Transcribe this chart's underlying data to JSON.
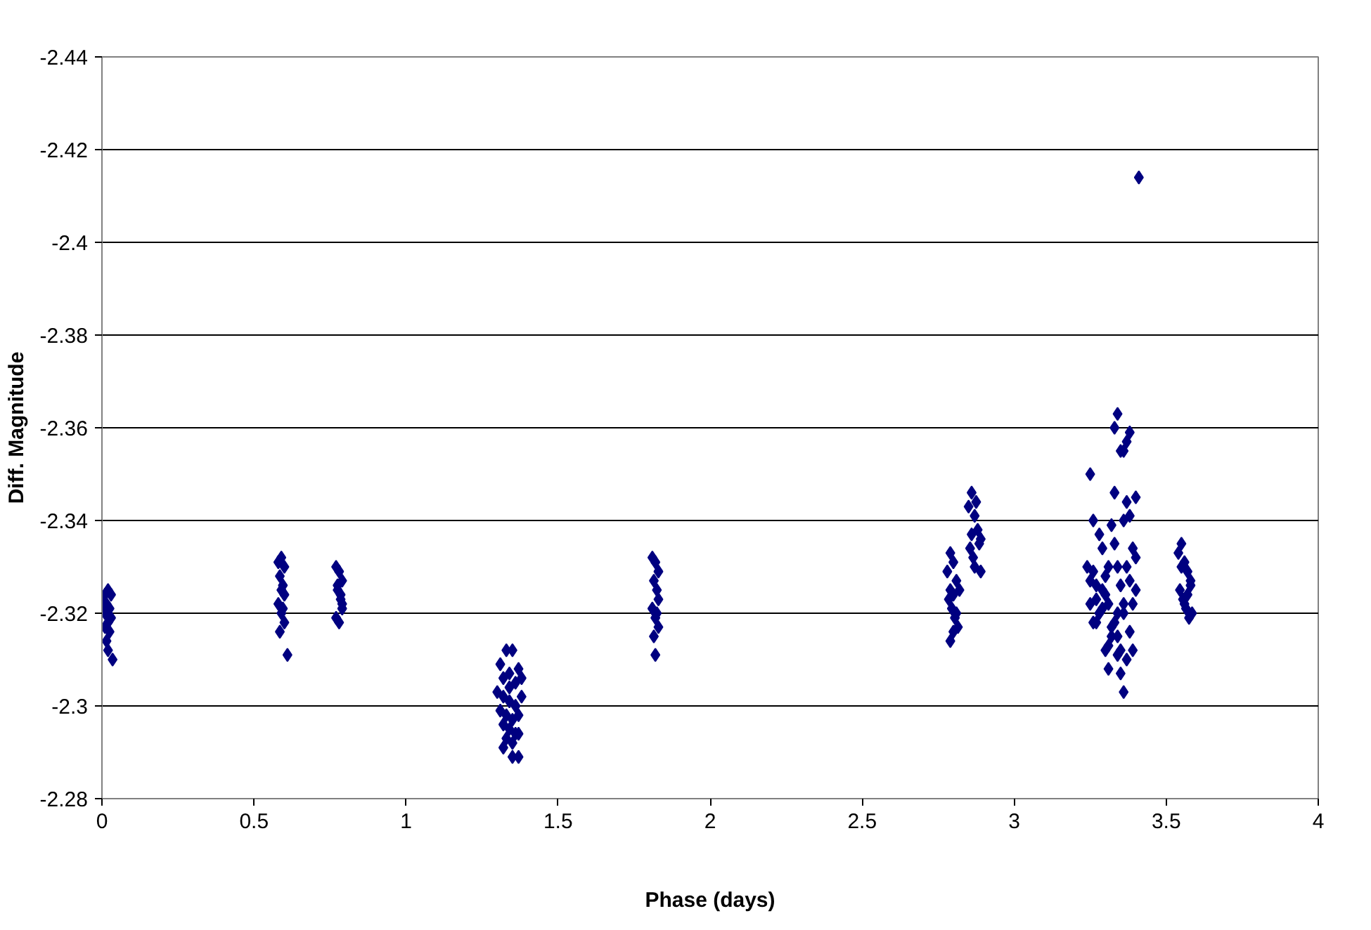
{
  "chart_data": {
    "type": "scatter",
    "xlabel": "Phase (days)",
    "ylabel": "Diff. Magnitude",
    "x": [
      0.01,
      0.02,
      0.03,
      0.015,
      0.025,
      0.01,
      0.03,
      0.02,
      0.01,
      0.025,
      0.015,
      0.035,
      0.005,
      0.02,
      0.58,
      0.59,
      0.6,
      0.585,
      0.595,
      0.6,
      0.58,
      0.59,
      0.6,
      0.585,
      0.595,
      0.59,
      0.61,
      0.77,
      0.78,
      0.79,
      0.775,
      0.785,
      0.79,
      0.77,
      0.78,
      0.79,
      0.775,
      0.785,
      1.31,
      1.33,
      1.35,
      1.37,
      1.32,
      1.34,
      1.36,
      1.38,
      1.3,
      1.32,
      1.34,
      1.36,
      1.38,
      1.31,
      1.33,
      1.35,
      1.37,
      1.32,
      1.34,
      1.36,
      1.33,
      1.35,
      1.37,
      1.34,
      1.36,
      1.32,
      1.35,
      1.37,
      1.81,
      1.82,
      1.83,
      1.815,
      1.825,
      1.83,
      1.81,
      1.82,
      1.83,
      1.815,
      1.825,
      1.82,
      2.78,
      2.79,
      2.8,
      2.81,
      2.82,
      2.785,
      2.795,
      2.805,
      2.815,
      2.8,
      2.79,
      2.81,
      2.8,
      2.79,
      2.85,
      2.86,
      2.87,
      2.88,
      2.89,
      2.855,
      2.865,
      2.875,
      2.885,
      2.87,
      2.89,
      2.86,
      3.24,
      3.25,
      3.26,
      3.27,
      3.28,
      3.29,
      3.3,
      3.31,
      3.32,
      3.33,
      3.34,
      3.35,
      3.36,
      3.37,
      3.38,
      3.39,
      3.4,
      3.25,
      3.27,
      3.29,
      3.31,
      3.33,
      3.35,
      3.37,
      3.39,
      3.26,
      3.28,
      3.3,
      3.32,
      3.34,
      3.36,
      3.38,
      3.4,
      3.25,
      3.28,
      3.31,
      3.34,
      3.37,
      3.4,
      3.27,
      3.3,
      3.33,
      3.36,
      3.39,
      3.26,
      3.29,
      3.32,
      3.35,
      3.38,
      3.31,
      3.34,
      3.33,
      3.36,
      3.35,
      3.37,
      3.38,
      3.36,
      3.34,
      3.41,
      3.54,
      3.55,
      3.56,
      3.57,
      3.58,
      3.545,
      3.555,
      3.565,
      3.575,
      3.585,
      3.55,
      3.57,
      3.56,
      3.58
    ],
    "values": [
      -2.324,
      -2.325,
      -2.324,
      -2.322,
      -2.321,
      -2.32,
      -2.319,
      -2.318,
      -2.317,
      -2.316,
      -2.314,
      -2.31,
      -2.322,
      -2.312,
      -2.331,
      -2.332,
      -2.33,
      -2.328,
      -2.326,
      -2.324,
      -2.322,
      -2.32,
      -2.318,
      -2.316,
      -2.321,
      -2.325,
      -2.311,
      -2.33,
      -2.329,
      -2.327,
      -2.325,
      -2.323,
      -2.321,
      -2.319,
      -2.318,
      -2.322,
      -2.326,
      -2.324,
      -2.309,
      -2.312,
      -2.312,
      -2.308,
      -2.306,
      -2.307,
      -2.305,
      -2.306,
      -2.303,
      -2.302,
      -2.301,
      -2.3,
      -2.302,
      -2.299,
      -2.298,
      -2.297,
      -2.298,
      -2.296,
      -2.295,
      -2.294,
      -2.293,
      -2.292,
      -2.294,
      -2.304,
      -2.3,
      -2.291,
      -2.289,
      -2.289,
      -2.332,
      -2.331,
      -2.329,
      -2.327,
      -2.325,
      -2.323,
      -2.321,
      -2.319,
      -2.317,
      -2.315,
      -2.32,
      -2.311,
      -2.329,
      -2.333,
      -2.331,
      -2.327,
      -2.325,
      -2.323,
      -2.321,
      -2.319,
      -2.317,
      -2.316,
      -2.325,
      -2.32,
      -2.324,
      -2.314,
      -2.343,
      -2.346,
      -2.341,
      -2.338,
      -2.336,
      -2.334,
      -2.332,
      -2.344,
      -2.335,
      -2.33,
      -2.329,
      -2.337,
      -2.33,
      -2.35,
      -2.34,
      -2.326,
      -2.337,
      -2.334,
      -2.328,
      -2.322,
      -2.339,
      -2.36,
      -2.33,
      -2.355,
      -2.34,
      -2.344,
      -2.341,
      -2.334,
      -2.345,
      -2.322,
      -2.318,
      -2.325,
      -2.33,
      -2.335,
      -2.326,
      -2.33,
      -2.322,
      -2.318,
      -2.32,
      -2.324,
      -2.315,
      -2.32,
      -2.322,
      -2.316,
      -2.332,
      -2.327,
      -2.32,
      -2.313,
      -2.315,
      -2.31,
      -2.325,
      -2.323,
      -2.312,
      -2.318,
      -2.32,
      -2.312,
      -2.329,
      -2.321,
      -2.317,
      -2.312,
      -2.327,
      -2.308,
      -2.363,
      -2.346,
      -2.355,
      -2.307,
      -2.357,
      -2.359,
      -2.303,
      -2.311,
      -2.414,
      -2.333,
      -2.335,
      -2.331,
      -2.329,
      -2.327,
      -2.325,
      -2.323,
      -2.321,
      -2.319,
      -2.32,
      -2.33,
      -2.324,
      -2.322,
      -2.326
    ],
    "color": "#000080",
    "marker": "diamond",
    "xlim": [
      0,
      4
    ],
    "xticks": [
      0,
      0.5,
      1,
      1.5,
      2,
      2.5,
      3,
      3.5,
      4
    ],
    "ylim": [
      -2.28,
      -2.44
    ],
    "yticks": [
      -2.44,
      -2.42,
      -2.4,
      -2.38,
      -2.36,
      -2.34,
      -2.32,
      -2.3,
      -2.28
    ],
    "grid": "y"
  }
}
